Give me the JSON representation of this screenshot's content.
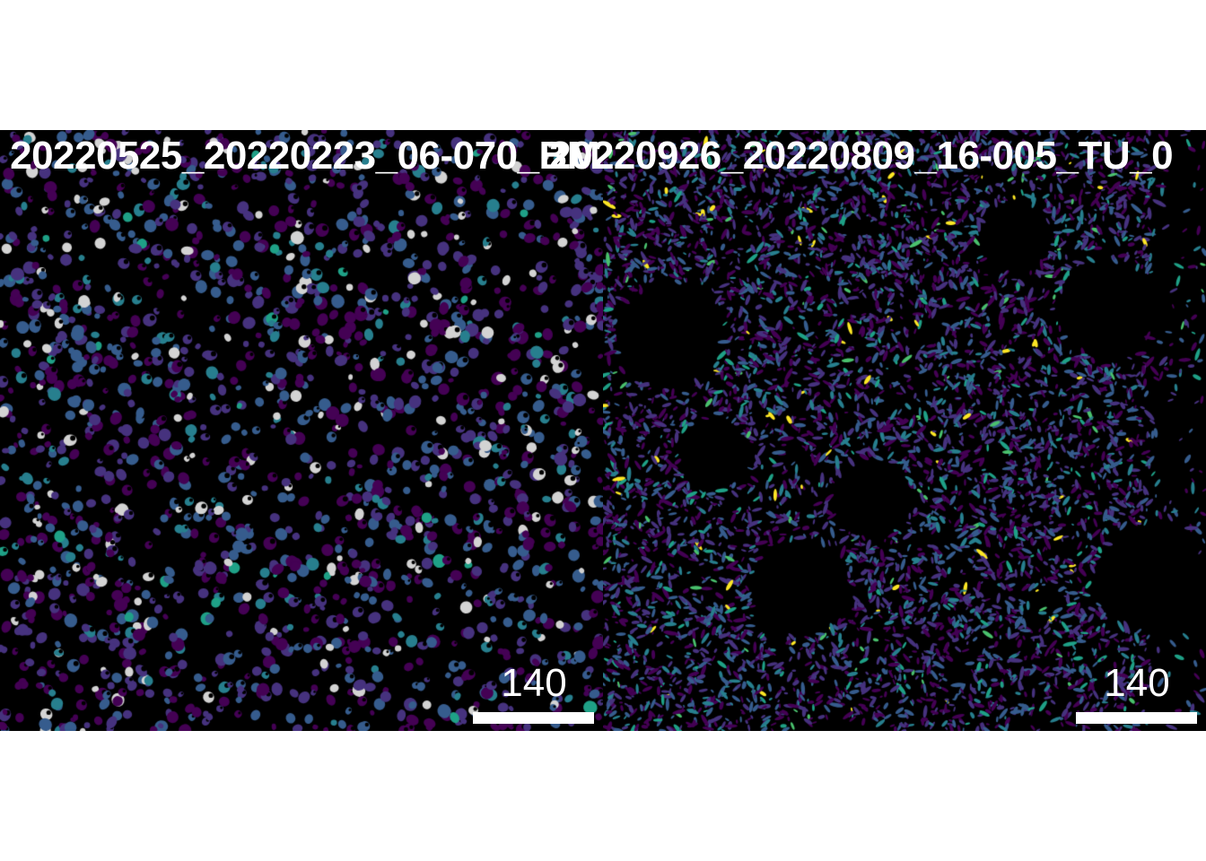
{
  "panels": [
    {
      "title": "20220525_20220223_06-070_BM",
      "scalebar_label": "140",
      "palette": [
        "#440154",
        "#46327e",
        "#365c8d",
        "#277f8e",
        "#1fa187",
        "#4ac16d",
        "#a0da39",
        "#fde725",
        "#d3d3d3"
      ]
    },
    {
      "title": "20220926_20220809_16-005_TU_0",
      "scalebar_label": "140",
      "palette": [
        "#440154",
        "#46327e",
        "#365c8d",
        "#277f8e",
        "#1fa187",
        "#4ac16d",
        "#a0da39",
        "#fde725"
      ]
    }
  ]
}
